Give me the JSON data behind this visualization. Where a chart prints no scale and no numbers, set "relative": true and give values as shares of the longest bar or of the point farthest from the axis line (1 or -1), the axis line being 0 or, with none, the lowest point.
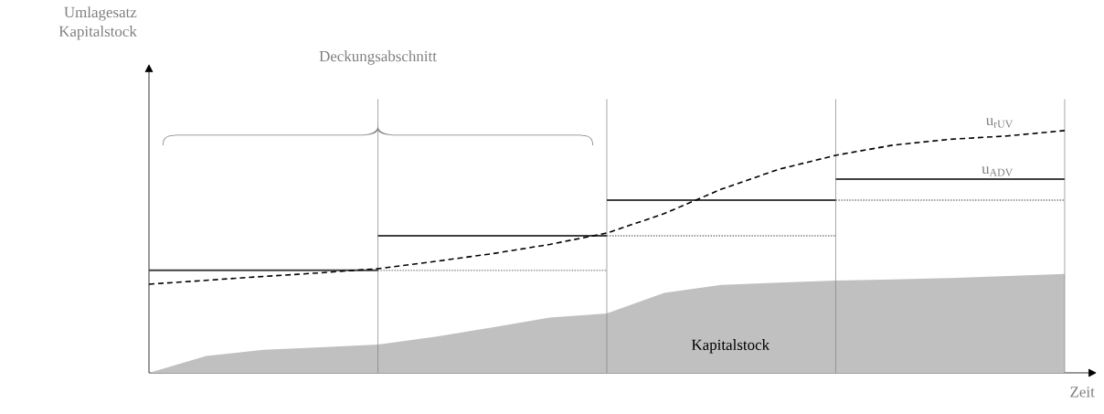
{
  "chart_data": {
    "type": "line",
    "relative": true,
    "xlabel": "Zeit",
    "annotations": [
      "Deckungsabschnitt",
      "Umlagesatz Kapitalstock"
    ],
    "categories": [
      null,
      null,
      null,
      null,
      null,
      null,
      null,
      null,
      null,
      null,
      null,
      null,
      null,
      null,
      null,
      null,
      null
    ],
    "series": [
      {
        "name": "Kapitalstock",
        "type": "area",
        "color": "#c0c0c0",
        "values": [
          0,
          0.07,
          0.095,
          0.106,
          0.117,
          0.149,
          0.188,
          0.228,
          0.245,
          0.33,
          0.363,
          0.372,
          0.381,
          0.386,
          0.391,
          0.4,
          0.408
        ]
      },
      {
        "line_style": "dotted",
        "color": "#808080",
        "values": [
          null,
          null,
          null,
          null,
          0.423,
          0.423,
          0.423,
          0.423,
          0.423,
          null,
          null,
          null,
          null,
          null,
          null,
          null,
          null
        ]
      },
      {
        "line_style": "dotted",
        "color": "#808080",
        "values": [
          null,
          null,
          null,
          null,
          null,
          null,
          null,
          null,
          0.566,
          0.566,
          0.566,
          0.566,
          0.566,
          null,
          null,
          null,
          null
        ]
      },
      {
        "line_style": "dotted",
        "color": "#808080",
        "values": [
          null,
          null,
          null,
          null,
          null,
          null,
          null,
          null,
          null,
          null,
          null,
          null,
          0.713,
          0.713,
          0.713,
          0.713,
          0.713
        ]
      },
      {
        "line_style": "solid",
        "color": "#404040",
        "values": [
          0.423,
          0.423,
          0.423,
          0.423,
          0.423,
          null,
          null,
          null,
          null,
          null,
          null,
          null,
          null,
          null,
          null,
          null,
          null
        ]
      },
      {
        "line_style": "solid",
        "color": "#404040",
        "values": [
          null,
          null,
          null,
          null,
          0.566,
          0.566,
          0.566,
          0.566,
          0.566,
          null,
          null,
          null,
          null,
          null,
          null,
          null,
          null
        ]
      },
      {
        "line_style": "solid",
        "color": "#404040",
        "values": [
          null,
          null,
          null,
          null,
          null,
          null,
          null,
          null,
          0.713,
          0.713,
          0.713,
          0.713,
          0.713,
          null,
          null,
          null,
          null
        ]
      },
      {
        "name": "u$_{ADV}$",
        "line_style": "solid",
        "color": "#404040",
        "values": [
          null,
          null,
          null,
          null,
          null,
          null,
          null,
          null,
          null,
          null,
          null,
          null,
          0.8,
          0.8,
          0.8,
          0.8,
          0.8
        ]
      },
      {
        "name": "u$_{rUV}$",
        "line_style": "dashed",
        "color": "#000000",
        "values": [
          0.366,
          0.382,
          0.398,
          0.413,
          0.43,
          0.46,
          0.492,
          0.53,
          0.577,
          0.657,
          0.758,
          0.84,
          0.898,
          0.94,
          0.964,
          0.978,
          1
        ]
      }
    ]
  }
}
